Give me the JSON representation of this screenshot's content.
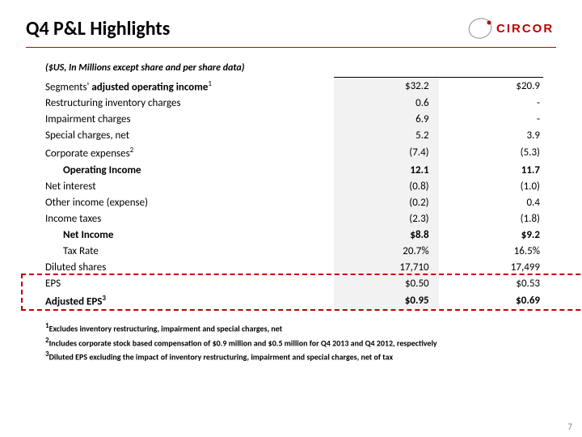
{
  "title": "Q4 P&L Highlights",
  "logo_text": "CIRCOR",
  "logo_color": "#c00000",
  "hr_color": "#c00000",
  "subtitle": "($US, In Millions except share and per share data)",
  "table": {
    "rows": [
      {
        "label_pre": "Segments' ",
        "label_bold": "adjusted operating income",
        "sup": "1",
        "v1": "$32.2",
        "v2": "$20.9",
        "indent": 0,
        "bold": false,
        "top_border": true
      },
      {
        "label": "Restructuring inventory charges",
        "v1": "0.6",
        "v2": "-",
        "indent": 0,
        "bold": false
      },
      {
        "label": "Impairment charges",
        "v1": "6.9",
        "v2": "-",
        "indent": 0,
        "bold": false
      },
      {
        "label": "Special charges, net",
        "v1": "5.2",
        "v2": "3.9",
        "indent": 0,
        "bold": false
      },
      {
        "label_pre": "Corporate expenses",
        "sup": "2",
        "v1": "(7.4)",
        "v2": "(5.3)",
        "indent": 0,
        "bold": false
      },
      {
        "label": "Operating Income",
        "v1": "12.1",
        "v2": "11.7",
        "indent": 1,
        "bold": true
      },
      {
        "label": "Net interest",
        "v1": "(0.8)",
        "v2": "(1.0)",
        "indent": 0,
        "bold": false
      },
      {
        "label": "Other income (expense)",
        "v1": "(0.2)",
        "v2": "0.4",
        "indent": 0,
        "bold": false
      },
      {
        "label": "Income taxes",
        "v1": "(2.3)",
        "v2": "(1.8)",
        "indent": 0,
        "bold": false
      },
      {
        "label": "Net Income",
        "v1": "$8.8",
        "v2": "$9.2",
        "indent": 1,
        "bold": true
      },
      {
        "label": "Tax Rate",
        "v1": "20.7%",
        "v2": "16.5%",
        "indent": 1,
        "bold": false
      },
      {
        "label": "Diluted shares",
        "v1": "17,710",
        "v2": "17,499",
        "indent": 0,
        "bold": false
      },
      {
        "label": "EPS",
        "v1": "$0.50",
        "v2": "$0.53",
        "indent": 0,
        "bold": false
      },
      {
        "label_pre": "Adjusted EPS",
        "sup": "3",
        "v1": "$0.95",
        "v2": "$0.69",
        "indent": 0,
        "bold": true
      }
    ],
    "shaded_col_bg": "#f2f2f2",
    "highlight": {
      "color": "#c00000",
      "dash": "2px dashed",
      "row_start": 12,
      "row_end": 13
    }
  },
  "footnotes": [
    {
      "sup": "1",
      "text": "Excludes inventory restructuring, impairment and special charges, net"
    },
    {
      "sup": "2",
      "text": "Includes corporate stock based compensation of  $0.9 million and $0.5 million for Q4 2013 and Q4 2012, respectively"
    },
    {
      "sup": "3",
      "text": "Diluted EPS excluding the impact of inventory restructuring, impairment and special charges, net of tax"
    }
  ],
  "page_number": "7"
}
